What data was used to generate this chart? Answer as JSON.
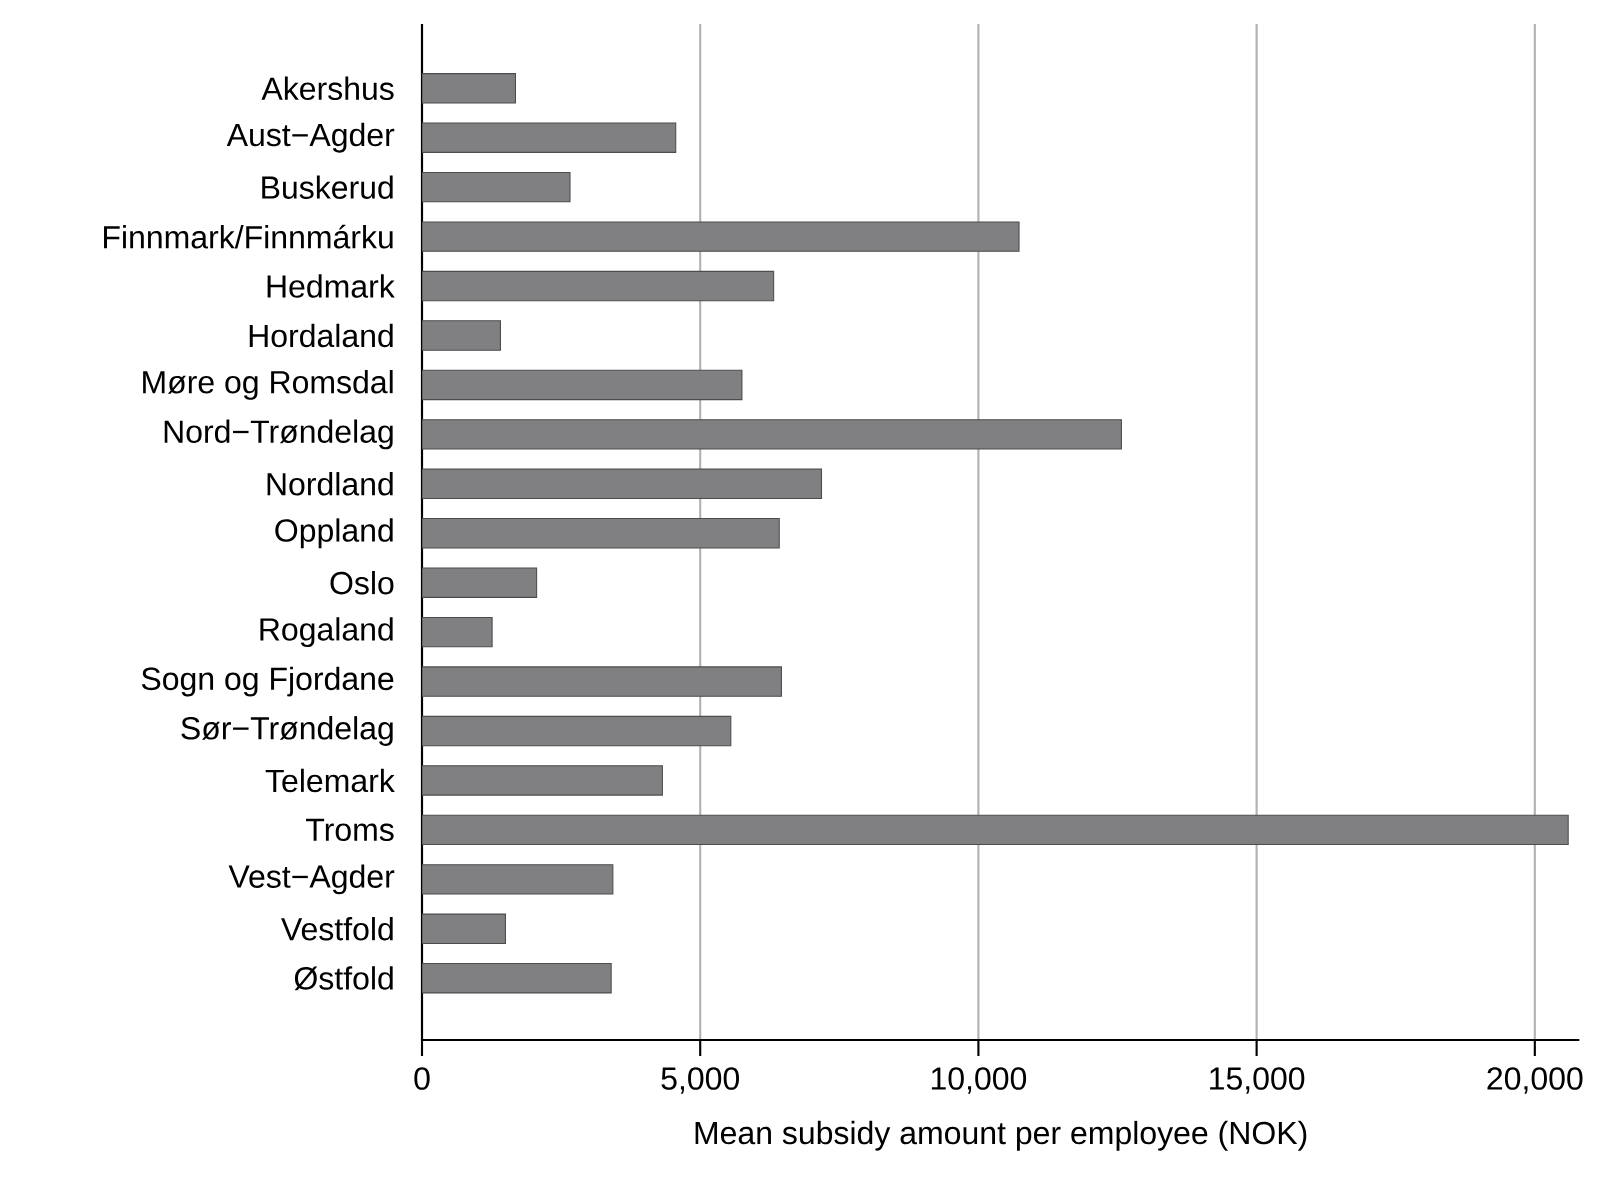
{
  "chart_data": {
    "type": "bar",
    "orientation": "horizontal",
    "xlabel": "Mean subsidy amount per employee (NOK)",
    "categories": [
      "Akershus",
      "Aust−Agder",
      "Buskerud",
      "Finnmark/Finnmárku",
      "Hedmark",
      "Hordaland",
      "Møre og Romsdal",
      "Nord−Trøndelag",
      "Nordland",
      "Oppland",
      "Oslo",
      "Rogaland",
      "Sogn og Fjordane",
      "Sør−Trøndelag",
      "Telemark",
      "Troms",
      "Vest−Agder",
      "Vestfold",
      "Østfold"
    ],
    "values": [
      1680,
      4560,
      2660,
      10730,
      6320,
      1410,
      5750,
      12570,
      7180,
      6420,
      2060,
      1260,
      6460,
      5550,
      4320,
      20600,
      3430,
      1500,
      3400
    ],
    "color": "#808083",
    "xlim": [
      0,
      20800
    ],
    "xticks": [
      0,
      {
        "value": 5000,
        "label": "5,000"
      },
      {
        "value": 10000,
        "label": "10,000"
      },
      {
        "value": 15000,
        "label": "15,000"
      },
      {
        "value": 20000,
        "label": "20,000"
      }
    ],
    "grid": "x"
  }
}
